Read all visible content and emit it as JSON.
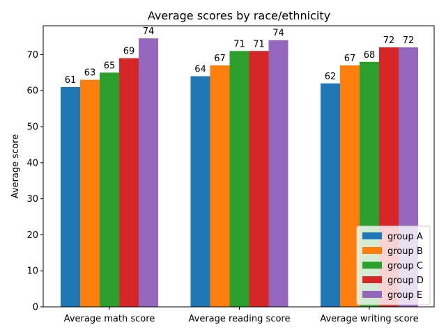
{
  "chart_data": {
    "type": "bar",
    "title": "Average scores by race/ethnicity",
    "xlabel": "",
    "ylabel": "Average score",
    "categories": [
      "Average math score",
      "Average reading score",
      "Average writing score"
    ],
    "ylim": [
      0,
      78
    ],
    "yticks": [
      0,
      10,
      20,
      30,
      40,
      50,
      60,
      70
    ],
    "grid": false,
    "legend_position": "lower right",
    "series": [
      {
        "name": "group A",
        "color": "#1f77b4",
        "values": [
          61,
          64,
          62
        ],
        "labels": [
          "61",
          "64",
          "62"
        ]
      },
      {
        "name": "group B",
        "color": "#ff7f0e",
        "values": [
          63,
          67,
          67
        ],
        "labels": [
          "63",
          "67",
          "67"
        ]
      },
      {
        "name": "group C",
        "color": "#2ca02c",
        "values": [
          65,
          71,
          68
        ],
        "labels": [
          "65",
          "71",
          "68"
        ]
      },
      {
        "name": "group D",
        "color": "#d62728",
        "values": [
          69,
          71,
          72
        ],
        "labels": [
          "69",
          "71",
          "72"
        ]
      },
      {
        "name": "group E",
        "color": "#9467bd",
        "values": [
          74.5,
          74,
          72
        ],
        "labels": [
          "74",
          "74",
          "72"
        ]
      }
    ]
  }
}
